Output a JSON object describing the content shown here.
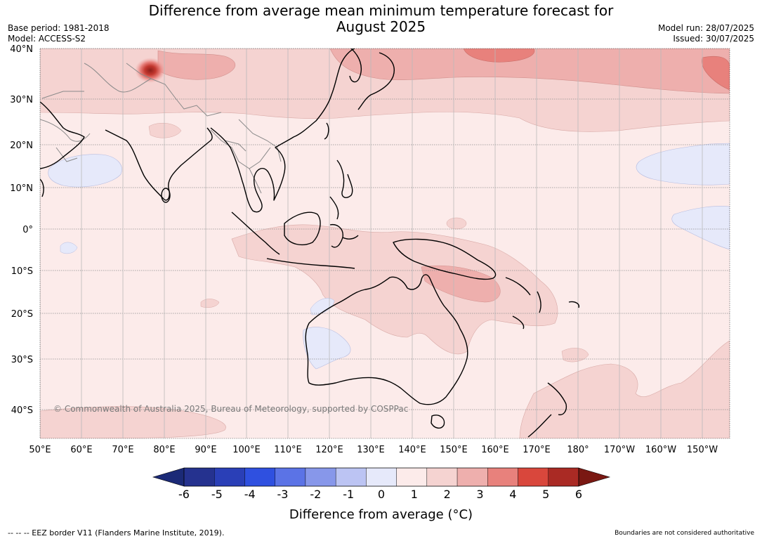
{
  "header": {
    "title_line1": "Difference from average mean minimum temperature forecast for",
    "title_line2": "August 2025",
    "base_period": "Base period: 1981-2018",
    "model": "Model: ACCESS-S2",
    "model_run": "Model run: 28/07/2025",
    "issued": "Issued: 30/07/2025"
  },
  "map": {
    "lat_labels": [
      "40°N",
      "30°N",
      "20°N",
      "10°N",
      "0°",
      "10°S",
      "20°S",
      "30°S",
      "40°S"
    ],
    "lon_labels": [
      "50°E",
      "60°E",
      "70°E",
      "80°E",
      "90°E",
      "100°E",
      "110°E",
      "120°E",
      "130°E",
      "140°E",
      "150°E",
      "160°E",
      "170°E",
      "180°",
      "170°W",
      "160°W",
      "150°W"
    ],
    "copyright": "© Commonwealth of Australia 2025, Bureau of Meteorology, supported by COSPPac",
    "background_anomaly_band": "0 to 1",
    "colors": {
      "band_0_1": "#fcebea",
      "band_1_2": "#f5d3d1",
      "band_2_3": "#eeafad",
      "band_3_4": "#e8817c",
      "band_5_6": "#aa2a24",
      "band_neg1_0": "#e6e9fa",
      "coast": "#000000",
      "border": "#8a8a8a"
    }
  },
  "colorbar": {
    "ticks": [
      "-6",
      "-5",
      "-4",
      "-3",
      "-2",
      "-1",
      "0",
      "1",
      "2",
      "3",
      "4",
      "5",
      "6"
    ],
    "colors": [
      "#25328f",
      "#2a3fb7",
      "#2f50e0",
      "#5b73e6",
      "#8797ea",
      "#bcc4f3",
      "#e6e9fa",
      "#fcebea",
      "#f5d3d1",
      "#eeafad",
      "#e8817c",
      "#d9473c",
      "#aa2a24"
    ],
    "under_color": "#1b2a77",
    "over_color": "#7a1812",
    "label": "Difference from average (°C)"
  },
  "footer": {
    "eez": "--  --  -- EEZ border V11 (Flanders Marine Institute, 2019).",
    "disclaimer": "Boundaries are not considered authoritative"
  }
}
